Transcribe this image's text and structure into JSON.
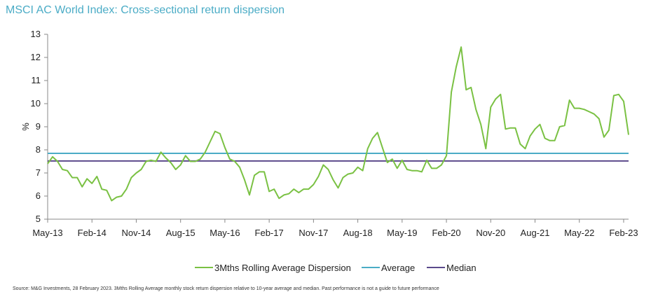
{
  "title": "MSCI AC World Index: Cross-sectional return dispersion",
  "source_note": "Source: M&G Investments, 28 February 2023. 3Mths Rolling Average monthly stock return dispersion relative to 10-year average and median. Past performance is not a guide to future performance",
  "colors": {
    "dispersion": "#7ac143",
    "average": "#4bacc6",
    "median": "#5b4a8b",
    "axis": "#888888",
    "title": "#4bacc6"
  },
  "chart_data": {
    "type": "line",
    "title": "MSCI AC World Index: Cross-sectional return dispersion",
    "xlabel": "",
    "ylabel": "%",
    "ylim": [
      5,
      13
    ],
    "yticks": [
      "5",
      "6",
      "7",
      "8",
      "9",
      "10",
      "11",
      "12",
      "13"
    ],
    "xticks": [
      "May-13",
      "Feb-14",
      "Nov-14",
      "Aug-15",
      "May-16",
      "Feb-17",
      "Nov-17",
      "Aug-18",
      "May-19",
      "Feb-20",
      "Nov-20",
      "Aug-21",
      "May-22",
      "Feb-23"
    ],
    "grid": false,
    "legend_position": "bottom",
    "series": [
      {
        "name": "3Mths Rolling Average Dispersion",
        "values": [
          7.4,
          7.7,
          7.5,
          7.15,
          7.1,
          6.8,
          6.8,
          6.4,
          6.75,
          6.55,
          6.85,
          6.3,
          6.25,
          5.8,
          5.95,
          6.0,
          6.3,
          6.8,
          7.0,
          7.15,
          7.5,
          7.55,
          7.5,
          7.9,
          7.65,
          7.45,
          7.15,
          7.35,
          7.75,
          7.5,
          7.5,
          7.6,
          7.9,
          8.35,
          8.8,
          8.7,
          8.1,
          7.6,
          7.5,
          7.25,
          6.7,
          6.05,
          6.9,
          7.05,
          7.05,
          6.2,
          6.3,
          5.9,
          6.05,
          6.1,
          6.3,
          6.15,
          6.3,
          6.3,
          6.5,
          6.85,
          7.35,
          7.15,
          6.7,
          6.35,
          6.8,
          6.95,
          7.0,
          7.25,
          7.1,
          8.05,
          8.5,
          8.75,
          8.1,
          7.45,
          7.6,
          7.2,
          7.55,
          7.15,
          7.1,
          7.1,
          7.05,
          7.55,
          7.2,
          7.2,
          7.35,
          7.75,
          10.5,
          11.6,
          12.45,
          10.6,
          10.7,
          9.75,
          9.1,
          8.05,
          9.85,
          10.2,
          10.4,
          8.9,
          8.95,
          8.95,
          8.25,
          8.05,
          8.6,
          8.9,
          9.1,
          8.5,
          8.4,
          8.4,
          9.0,
          9.05,
          10.15,
          9.8,
          9.8,
          9.75,
          9.65,
          9.55,
          9.35,
          8.55,
          8.85,
          10.35,
          10.4,
          10.1,
          8.65
        ]
      },
      {
        "name": "Average",
        "value": 7.85
      },
      {
        "name": "Median",
        "value": 7.52
      }
    ]
  }
}
